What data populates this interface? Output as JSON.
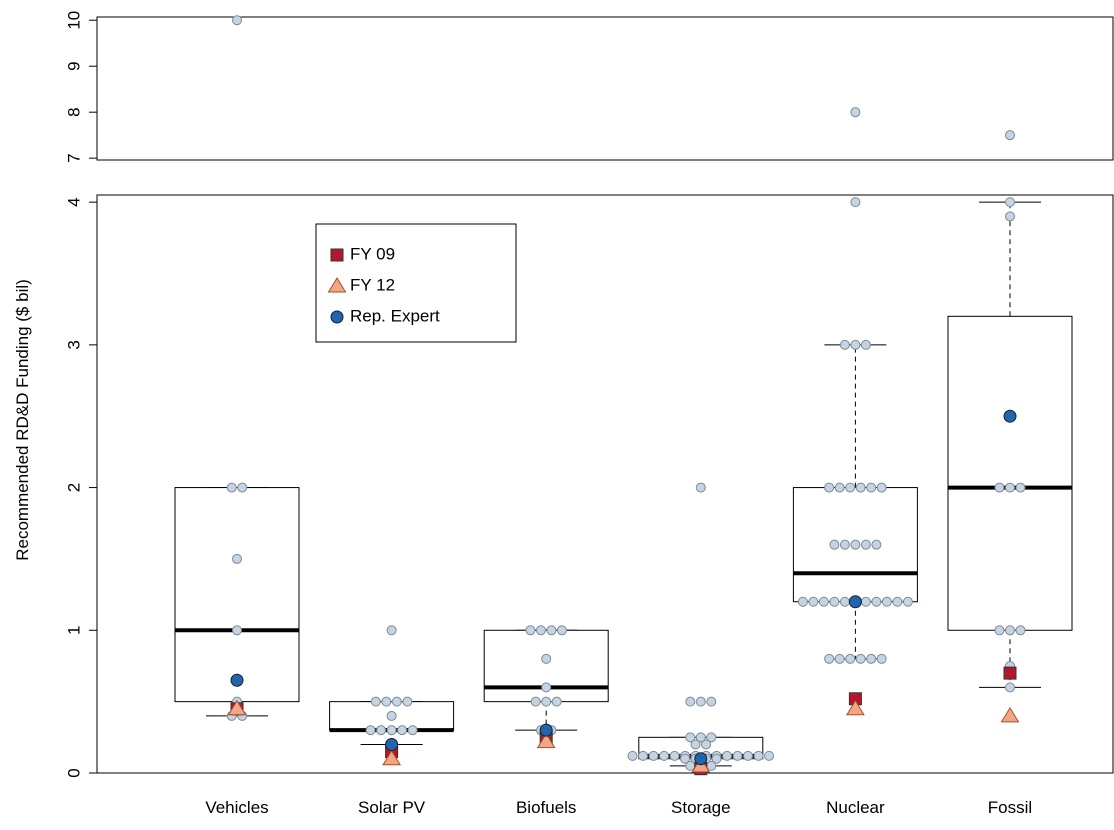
{
  "chart_data": {
    "type": "box",
    "y_label": "Recommended RD&D Funding ($ bil)",
    "categories": [
      "Vehicles",
      "Solar PV",
      "Biofuels",
      "Storage",
      "Nuclear",
      "Fossil"
    ],
    "panels": [
      {
        "ylim": [
          6.96,
          10.07
        ],
        "yticks": [
          7,
          8,
          9,
          10
        ]
      },
      {
        "ylim": [
          0,
          4.05
        ],
        "yticks": [
          0,
          1,
          2,
          3,
          4
        ]
      }
    ],
    "boxes": {
      "whisker_low": [
        0.4,
        0.2,
        0.3,
        0.05,
        0.8,
        0.6
      ],
      "q1": [
        0.5,
        0.3,
        0.5,
        0.1,
        1.2,
        1
      ],
      "median": [
        1,
        0.3,
        0.6,
        0.12,
        1.4,
        2
      ],
      "q3": [
        2,
        0.5,
        1,
        0.25,
        2,
        3.2
      ],
      "whisker_high": [
        2,
        0.5,
        1,
        0.25,
        3,
        4
      ]
    },
    "points": [
      [
        10,
        2,
        2,
        1.5,
        1,
        0.5,
        0.45,
        0.4,
        0.4
      ],
      [
        1,
        0.5,
        0.5,
        0.5,
        0.5,
        0.4,
        0.3,
        0.3,
        0.3,
        0.3,
        0.3,
        0.2
      ],
      [
        1,
        1,
        1,
        1,
        0.8,
        0.6,
        0.5,
        0.5,
        0.5,
        0.3,
        0.3
      ],
      [
        2,
        0.5,
        0.5,
        0.5,
        0.25,
        0.25,
        0.25,
        0.2,
        0.2,
        0.12,
        0.12,
        0.12,
        0.12,
        0.12,
        0.12,
        0.12,
        0.12,
        0.12,
        0.12,
        0.12,
        0.12,
        0.12,
        0.12,
        0.1,
        0.1,
        0.1,
        0.1,
        0.05,
        0.05,
        0.05
      ],
      [
        8,
        4,
        3,
        3,
        3,
        2,
        2,
        2,
        2,
        2,
        2,
        1.6,
        1.6,
        1.6,
        1.6,
        1.6,
        1.2,
        1.2,
        1.2,
        1.2,
        1.2,
        1.2,
        1.2,
        1.2,
        1.2,
        1.2,
        1.2,
        0.8,
        0.8,
        0.8,
        0.8,
        0.8,
        0.8
      ],
      [
        7.5,
        4,
        3.9,
        2,
        2,
        2,
        1,
        1,
        1,
        0.75,
        0.6
      ]
    ],
    "point_color": "#c6d4e1",
    "series": [
      {
        "name": "FY 09",
        "color": "#b2182b",
        "marker": "square",
        "values": [
          0.45,
          0.15,
          0.25,
          0.03,
          0.52,
          0.7
        ]
      },
      {
        "name": "FY 12",
        "color": "#f4a582",
        "marker": "triangle",
        "values": [
          0.45,
          0.1,
          0.22,
          0.05,
          0.45,
          0.4
        ]
      },
      {
        "name": "Rep. Expert",
        "color": "#2166ac",
        "marker": "circle",
        "values": [
          0.65,
          0.2,
          0.3,
          0.1,
          1.2,
          2.5
        ]
      }
    ]
  }
}
